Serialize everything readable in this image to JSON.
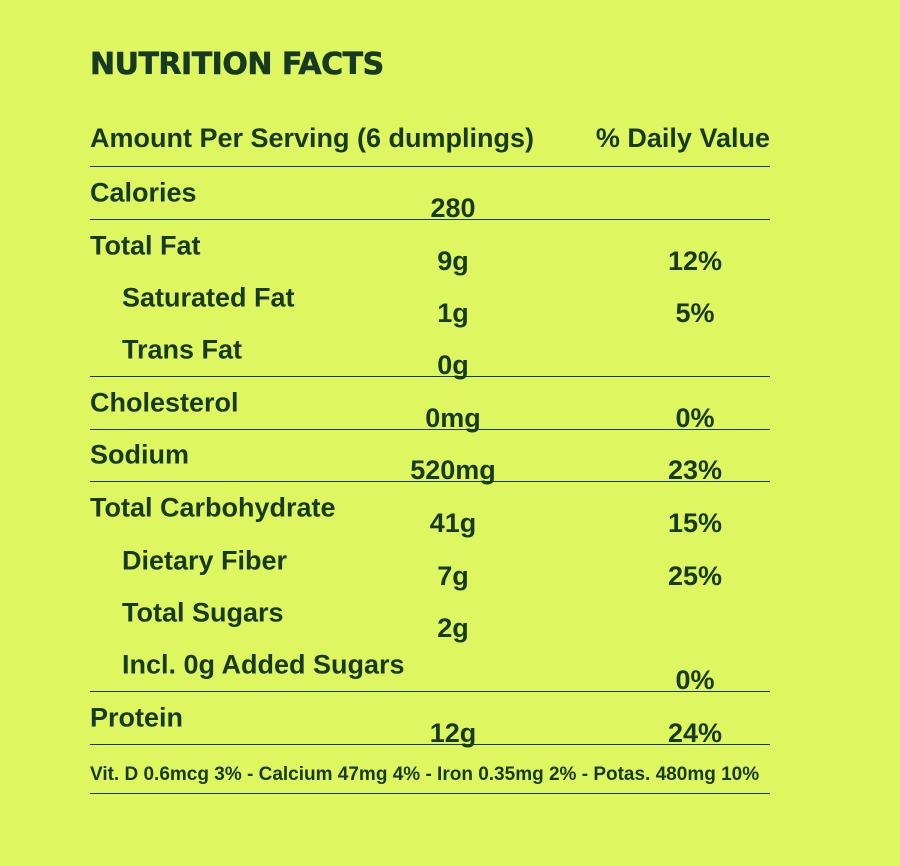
{
  "title": "NUTRITION FACTS",
  "header": {
    "serving": "Amount Per Serving (6 dumplings)",
    "daily_value": "% Daily Value"
  },
  "rows": [
    {
      "label": "Calories",
      "amount": "280",
      "dv": "",
      "sub": false,
      "divider": true
    },
    {
      "label": "Total Fat",
      "amount": "9g",
      "dv": "12%",
      "sub": false,
      "divider": false
    },
    {
      "label": "Saturated Fat",
      "amount": "1g",
      "dv": "5%",
      "sub": true,
      "divider": false
    },
    {
      "label": "Trans Fat",
      "amount": "0g",
      "dv": "",
      "sub": true,
      "divider": true
    },
    {
      "label": "Cholesterol",
      "amount": "0mg",
      "dv": "0%",
      "sub": false,
      "divider": true
    },
    {
      "label": "Sodium",
      "amount": "520mg",
      "dv": "23%",
      "sub": false,
      "divider": true
    },
    {
      "label": "Total Carbohydrate",
      "amount": "41g",
      "dv": "15%",
      "sub": false,
      "divider": false
    },
    {
      "label": "Dietary Fiber",
      "amount": "7g",
      "dv": "25%",
      "sub": true,
      "divider": false
    },
    {
      "label": "Total Sugars",
      "amount": "2g",
      "dv": "",
      "sub": true,
      "divider": false
    },
    {
      "label": "Incl. 0g Added Sugars",
      "amount": "",
      "dv": "0%",
      "sub": true,
      "divider": true
    },
    {
      "label": "Protein",
      "amount": "12g",
      "dv": "24%",
      "sub": false,
      "divider": true
    }
  ],
  "footer": "Vit. D 0.6mcg 3% - Calcium 47mg 4% - Iron 0.35mg 2% - Potas. 480mg 10%",
  "colors": {
    "background": "#def65f",
    "text": "#173a23"
  }
}
